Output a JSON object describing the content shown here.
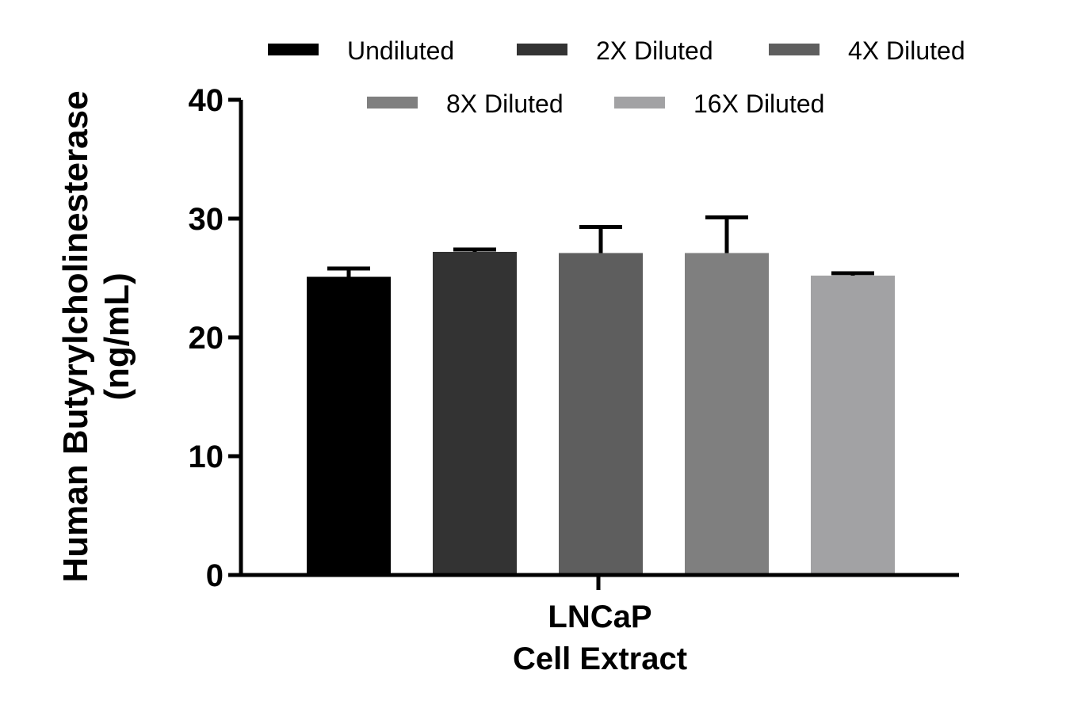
{
  "chart_data": {
    "type": "bar",
    "categories": [
      "LNCaP\nCell Extract"
    ],
    "category_lines": [
      "LNCaP",
      "Cell Extract"
    ],
    "ylabel_lines": [
      "Human Butyrylcholinesterase",
      "(ng/mL)"
    ],
    "xlabel": "",
    "ylim": [
      0,
      40
    ],
    "yticks": [
      0,
      10,
      20,
      30,
      40
    ],
    "yticks_text": [
      "0",
      "10",
      "20",
      "30",
      "40"
    ],
    "legend_position": "top",
    "grid": false,
    "series": [
      {
        "name": "Undiluted",
        "values": [
          25.1
        ],
        "error": [
          0.7
        ],
        "color": "#000000"
      },
      {
        "name": "2X Diluted",
        "values": [
          27.2
        ],
        "error": [
          0.2
        ],
        "color": "#333333"
      },
      {
        "name": "4X Diluted",
        "values": [
          27.1
        ],
        "error": [
          2.2
        ],
        "color": "#5e5e5e"
      },
      {
        "name": "8X Diluted",
        "values": [
          27.1
        ],
        "error": [
          3.0
        ],
        "color": "#7f7f7f"
      },
      {
        "name": "16X Diluted",
        "values": [
          25.2
        ],
        "error": [
          0.2
        ],
        "color": "#a2a2a4"
      }
    ]
  }
}
